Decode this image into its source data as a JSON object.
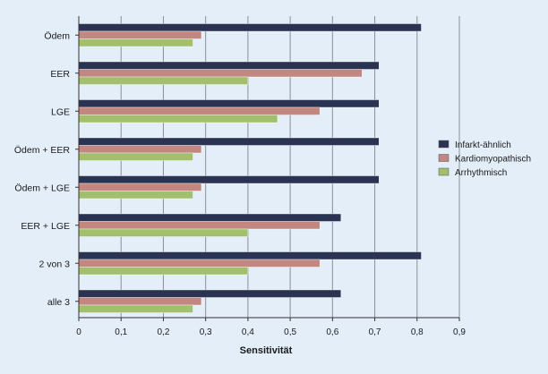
{
  "chart_data": {
    "type": "bar",
    "orientation": "horizontal",
    "categories": [
      "Ödem",
      "EER",
      "LGE",
      "Ödem + EER",
      "Ödem + LGE",
      "EER + LGE",
      "2 von 3",
      "alle 3"
    ],
    "series": [
      {
        "name": "Infarkt-ähnlich",
        "color": "#2a3452",
        "values": [
          0.81,
          0.71,
          0.71,
          0.71,
          0.71,
          0.62,
          0.81,
          0.62
        ]
      },
      {
        "name": "Kardiomyopathisch",
        "color": "#c38781",
        "values": [
          0.29,
          0.67,
          0.57,
          0.29,
          0.29,
          0.57,
          0.57,
          0.29
        ]
      },
      {
        "name": "Arrhythmisch",
        "color": "#a1bf6d",
        "values": [
          0.27,
          0.4,
          0.47,
          0.27,
          0.27,
          0.4,
          0.4,
          0.27
        ]
      }
    ],
    "xlim": [
      0,
      0.9
    ],
    "x_ticks": [
      "0",
      "0,1",
      "0,2",
      "0,3",
      "0,4",
      "0,5",
      "0,6",
      "0,7",
      "0,8",
      "0,9"
    ],
    "xlabel": "Sensitivität",
    "ylabel": "",
    "grid": "vertical",
    "legend_position": "right"
  }
}
